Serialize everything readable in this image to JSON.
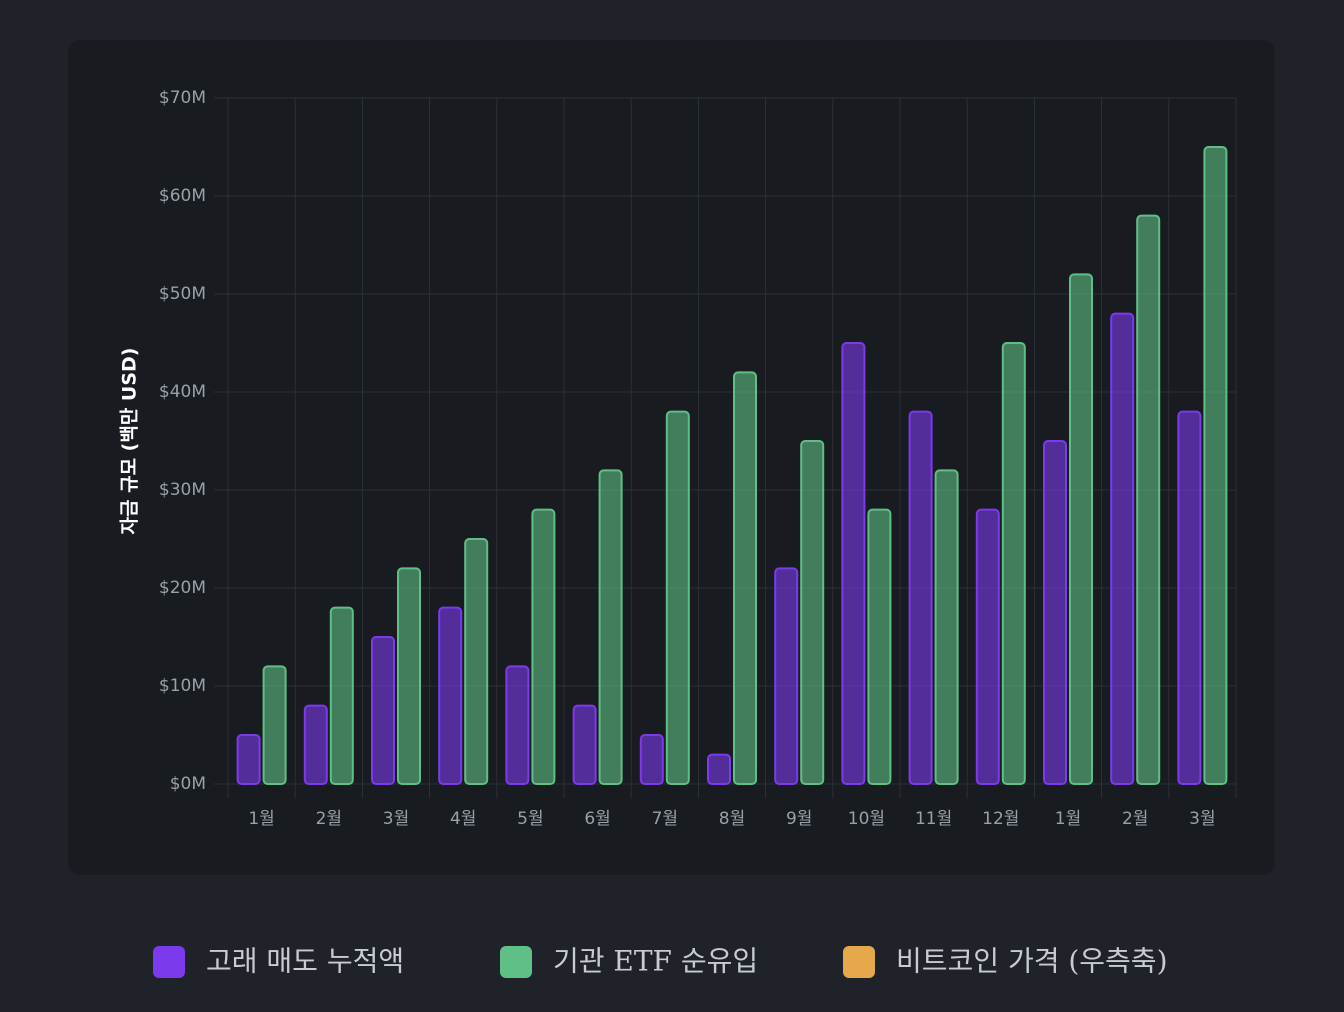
{
  "chart_data": {
    "type": "bar",
    "y_label": "자금 규모 (백만 USD)",
    "categories": [
      "1월",
      "2월",
      "3월",
      "4월",
      "5월",
      "6월",
      "7월",
      "8월",
      "9월",
      "10월",
      "11월",
      "12월",
      "1월",
      "2월",
      "3월"
    ],
    "series": [
      {
        "name": "고래 매도 누적액",
        "color": "#7c3aed",
        "values": [
          5,
          8,
          15,
          18,
          12,
          8,
          5,
          3,
          22,
          45,
          38,
          28,
          35,
          48,
          38
        ]
      },
      {
        "name": "기관 ETF 순유입",
        "color": "#5fbf86",
        "values": [
          12,
          18,
          22,
          25,
          28,
          32,
          38,
          42,
          35,
          28,
          32,
          45,
          52,
          58,
          65
        ]
      },
      {
        "name": "비트코인 가격 (우측축)",
        "color": "#e5a84b",
        "values": [
          null,
          null,
          null,
          null,
          null,
          null,
          null,
          null,
          null,
          null,
          null,
          null,
          null,
          null,
          null
        ]
      }
    ],
    "ylim": [
      0,
      70
    ],
    "yticks": [
      {
        "value": 0,
        "label": "$0M"
      },
      {
        "value": 10,
        "label": "$10M"
      },
      {
        "value": 20,
        "label": "$20M"
      },
      {
        "value": 30,
        "label": "$30M"
      },
      {
        "value": 40,
        "label": "$40M"
      },
      {
        "value": 50,
        "label": "$50M"
      },
      {
        "value": 60,
        "label": "$60M"
      },
      {
        "value": 70,
        "label": "$70M"
      }
    ],
    "grid": true
  }
}
